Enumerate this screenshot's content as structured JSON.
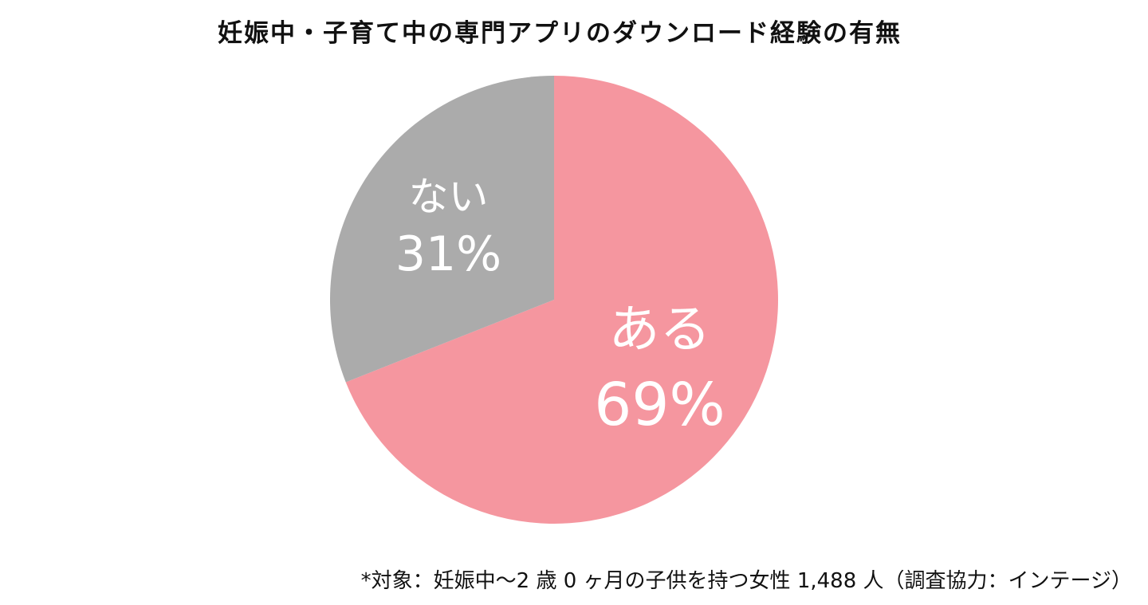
{
  "page": {
    "background": "#FFFFFF"
  },
  "footnote": "*対象：妊娠中〜2 歳 0 ヶ月の子供を持つ女性 1,488 人（調査協力：インテージ）",
  "chart_data": {
    "type": "pie",
    "title": "妊娠中・子育て中の専門アプリのダウンロード経験の有無",
    "slices": [
      {
        "label": "ある",
        "value": 69,
        "percent_text": "69%",
        "color": "#F5969F"
      },
      {
        "label": "ない",
        "value": 31,
        "percent_text": "31%",
        "color": "#ABABAB"
      }
    ],
    "start_angle_deg": -90,
    "direction": "clockwise",
    "label_color": "#FFFFFF",
    "label_radius_fraction": 0.57,
    "legend": "none",
    "background": "#FFFFFF"
  }
}
